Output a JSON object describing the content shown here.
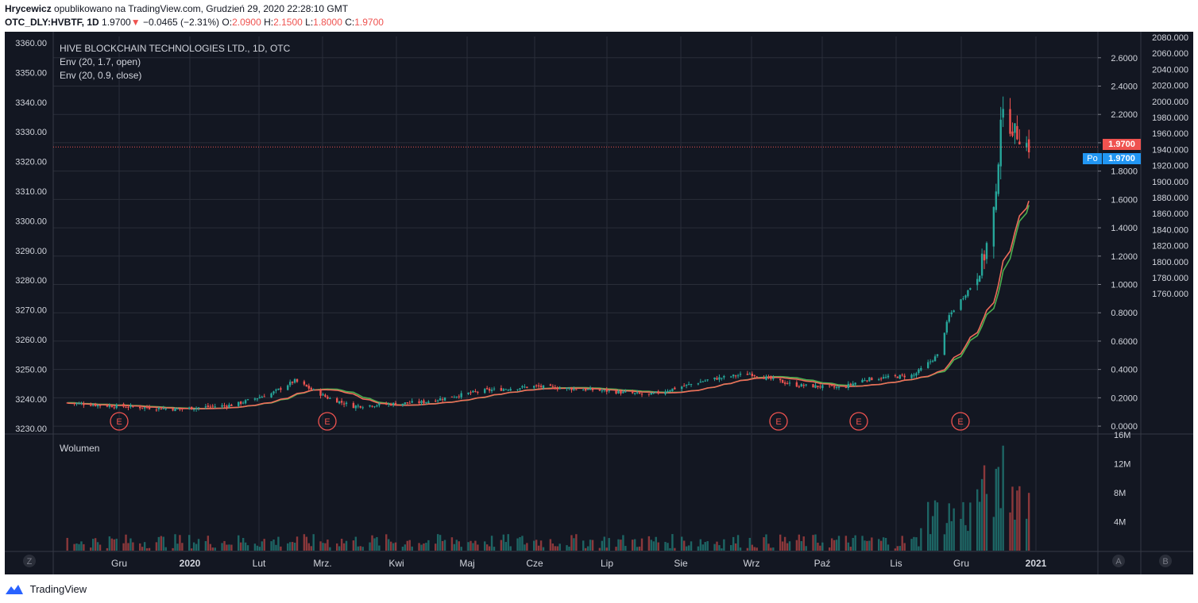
{
  "header": {
    "author": "Hrycewicz",
    "published": "opublikowano na TradingView.com, Grudzień 29, 2020 22:28:10 GMT",
    "symbol": "OTC_DLY:HVBTF, 1D",
    "last": "1.9700",
    "arrow": "▼",
    "change": "−0.0465 (−2.31%)",
    "o_label": "O:",
    "o_val": "2.0900",
    "h_label": "H:",
    "h_val": "2.1500",
    "l_label": "L:",
    "l_val": "1.8000",
    "c_label": "C:",
    "c_val": "1.9700"
  },
  "legend": {
    "title": "HIVE BLOCKCHAIN TECHNOLOGIES LTD., 1D, OTC",
    "env1": "Env (20, 1.7, open)",
    "env2": "Env (20, 0.9, close)",
    "volume": "Wolumen"
  },
  "price_labels": {
    "last": "1.9700",
    "po_tag": "Po",
    "po_value": "1.9700"
  },
  "colors": {
    "background": "#131722",
    "grid": "#2a2e39",
    "up": "#26a69a",
    "down": "#ef5350",
    "env_open": "#4caf50",
    "env_close": "#ef6c5a",
    "text": "#d1d4dc",
    "last_price": "#ef5350",
    "po": "#2196f3"
  },
  "footer": {
    "brand": "TradingView"
  },
  "chart_data": {
    "type": "candlestick",
    "title": "HIVE BLOCKCHAIN TECHNOLOGIES LTD., 1D, OTC",
    "x_labels": [
      "Gru",
      "2020",
      "Lut",
      "Mrz.",
      "Kwi",
      "Maj",
      "Cze",
      "Lip",
      "Sie",
      "Wrz",
      "Paź",
      "Lis",
      "Gru",
      "2021"
    ],
    "bottom_left_button": "Z",
    "bottom_right_buttons": [
      "A",
      "B"
    ],
    "y_right_main": [
      "2.6000",
      "2.4000",
      "2.2000",
      "2.0000",
      "1.8000",
      "1.6000",
      "1.4000",
      "1.2000",
      "1.0000",
      "0.8000",
      "0.6000",
      "0.4000",
      "0.2000",
      "0.0000"
    ],
    "y_left_overlay": [
      "3360.00",
      "3350.00",
      "3340.00",
      "3330.00",
      "3320.00",
      "3310.00",
      "3300.00",
      "3290.00",
      "3280.00",
      "3270.00",
      "3260.00",
      "3250.00",
      "3240.00",
      "3230.00"
    ],
    "y_right_overlay": [
      "2080.000",
      "2060.000",
      "2040.000",
      "2020.000",
      "2000.000",
      "1980.000",
      "1960.000",
      "1940.000",
      "1920.000",
      "1900.000",
      "1880.000",
      "1860.000",
      "1840.000",
      "1820.000",
      "1800.000",
      "1780.000",
      "1760.000"
    ],
    "volume_axis": [
      "16M",
      "12M",
      "8M",
      "4M"
    ],
    "earnings_markers": [
      "E",
      "E",
      "E",
      "E",
      "E"
    ],
    "last_close": 1.97,
    "anchors": [
      {
        "date": "2019-11-15",
        "close": 0.165
      },
      {
        "date": "2019-12-01",
        "close": 0.145
      },
      {
        "date": "2020-01-01",
        "close": 0.12
      },
      {
        "date": "2020-01-25",
        "close": 0.15
      },
      {
        "date": "2020-02-10",
        "close": 0.23
      },
      {
        "date": "2020-02-20",
        "close": 0.32
      },
      {
        "date": "2020-03-05",
        "close": 0.2
      },
      {
        "date": "2020-03-16",
        "close": 0.14
      },
      {
        "date": "2020-04-15",
        "close": 0.17
      },
      {
        "date": "2020-05-10",
        "close": 0.25
      },
      {
        "date": "2020-06-01",
        "close": 0.28
      },
      {
        "date": "2020-07-01",
        "close": 0.25
      },
      {
        "date": "2020-07-20",
        "close": 0.22
      },
      {
        "date": "2020-08-15",
        "close": 0.33
      },
      {
        "date": "2020-09-01",
        "close": 0.37
      },
      {
        "date": "2020-09-20",
        "close": 0.29
      },
      {
        "date": "2020-10-10",
        "close": 0.27
      },
      {
        "date": "2020-10-20",
        "close": 0.33
      },
      {
        "date": "2020-11-10",
        "close": 0.36
      },
      {
        "date": "2020-11-20",
        "close": 0.5
      },
      {
        "date": "2020-11-25",
        "close": 0.78
      },
      {
        "date": "2020-12-05",
        "close": 1.0
      },
      {
        "date": "2020-12-10",
        "close": 1.2
      },
      {
        "date": "2020-12-15",
        "close": 1.6
      },
      {
        "date": "2020-12-17",
        "close": 2.2
      },
      {
        "date": "2020-12-22",
        "close": 2.1
      },
      {
        "date": "2020-12-29",
        "close": 1.97
      }
    ],
    "y_range": [
      -0.05,
      2.75
    ],
    "volume_range": [
      0,
      16000000
    ]
  }
}
